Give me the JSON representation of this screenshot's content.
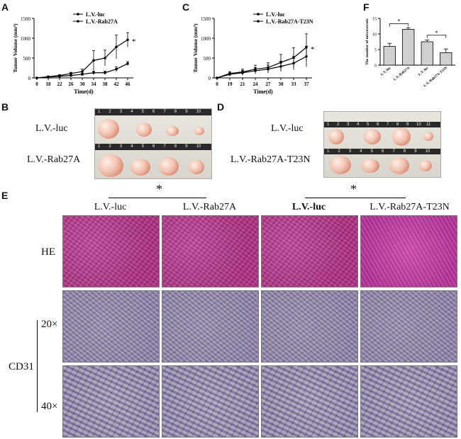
{
  "panels": {
    "A": "A",
    "B": "B",
    "C": "C",
    "D": "D",
    "E": "E",
    "F": "F"
  },
  "chartA": {
    "legend": [
      "L.V.-luc",
      "L.V.-Rab27A"
    ],
    "ylabel": "Tumor Volume (mm³)",
    "xlabel": "Time(d)",
    "star": "*"
  },
  "chartC": {
    "legend": [
      "L.V.-luc",
      "L.V.-Rab27A-T23N"
    ],
    "ylabel": "Tumor Volume (mm³)",
    "xlabel": "Time(d)",
    "star": "*"
  },
  "chartF": {
    "ylabel": "The number of microvessels",
    "star": "*"
  },
  "chart_data": [
    {
      "type": "line",
      "title": "",
      "xlabel": "Time(d)",
      "ylabel": "Tumor Volume (mm³)",
      "x": [
        0,
        18,
        22,
        26,
        30,
        34,
        38,
        42,
        46
      ],
      "xticks": [
        "0",
        "18",
        "22",
        "26",
        "30",
        "34",
        "38",
        "42",
        "46"
      ],
      "yticks": [
        "0",
        "500",
        "1000",
        "1500"
      ],
      "ylim": [
        0,
        1500
      ],
      "series": [
        {
          "name": "L.V.-luc",
          "values": [
            0,
            20,
            40,
            60,
            90,
            130,
            130,
            220,
            360
          ],
          "err": [
            0,
            5,
            10,
            15,
            30,
            40,
            40,
            60,
            50
          ]
        },
        {
          "name": "L.V.-Rab27A",
          "values": [
            0,
            30,
            60,
            110,
            160,
            440,
            500,
            780,
            960
          ],
          "err": [
            0,
            10,
            20,
            30,
            60,
            250,
            200,
            300,
            180
          ]
        }
      ]
    },
    {
      "type": "line",
      "title": "",
      "xlabel": "Time(d)",
      "ylabel": "Tumor Volume (mm³)",
      "x": [
        0,
        19,
        21,
        24,
        27,
        30,
        33,
        37
      ],
      "xticks": [
        "0",
        "19",
        "21",
        "24",
        "27",
        "30",
        "33",
        "37"
      ],
      "yticks": [
        "0",
        "500",
        "1000",
        "1500"
      ],
      "ylim": [
        0,
        1500
      ],
      "series": [
        {
          "name": "L.V.-luc",
          "values": [
            0,
            90,
            130,
            180,
            220,
            290,
            370,
            540
          ],
          "err": [
            0,
            40,
            60,
            80,
            100,
            130,
            170,
            260
          ]
        },
        {
          "name": "L.V.-Rab27A-T23N",
          "values": [
            0,
            110,
            150,
            220,
            260,
            390,
            510,
            770
          ],
          "err": [
            0,
            50,
            70,
            100,
            120,
            200,
            250,
            340
          ]
        }
      ]
    },
    {
      "type": "bar",
      "title": "",
      "xlabel": "",
      "ylabel": "The number of microvessels",
      "categories": [
        "L.V.-luc",
        "L.V.-Rab27A",
        "L.V.-luc",
        "L.V.-Rab27A-T23N"
      ],
      "yticks": [
        "0",
        "5",
        "10",
        "15"
      ],
      "ylim": [
        0,
        15
      ],
      "values": [
        6,
        11.5,
        7.5,
        4
      ],
      "err": [
        1,
        0.5,
        0.6,
        1.2
      ]
    }
  ],
  "panelB": {
    "labels": [
      "L.V.-luc",
      "L.V.-Rab27A"
    ],
    "row1_nums": [
      "1",
      "2",
      "3",
      "4",
      "5",
      "6",
      "7",
      "8",
      "9",
      "10"
    ],
    "row2_nums": [
      "1",
      "2",
      "3",
      "4",
      "5",
      "6",
      "7",
      "8",
      "9",
      "10"
    ]
  },
  "panelD": {
    "labels": [
      "L.V.-luc",
      "L.V.-Rab27A-T23N"
    ],
    "row1_nums": [
      "1",
      "2",
      "3",
      "4",
      "5",
      "6",
      "7",
      "8",
      "9",
      "10",
      "11"
    ],
    "row2_nums": [
      "1",
      "2",
      "3",
      "4",
      "5",
      "6",
      "7",
      "8",
      "9",
      "10"
    ]
  },
  "panelE": {
    "star_left": "*",
    "star_right": "*",
    "columns": [
      "L.V.-luc",
      "L.V.-Rab27A",
      "L.V.-luc",
      "L.V.-Rab27A-T23N"
    ],
    "row_he": "HE",
    "row_20": "20×",
    "row_40": "40×",
    "cd31": "CD31"
  }
}
